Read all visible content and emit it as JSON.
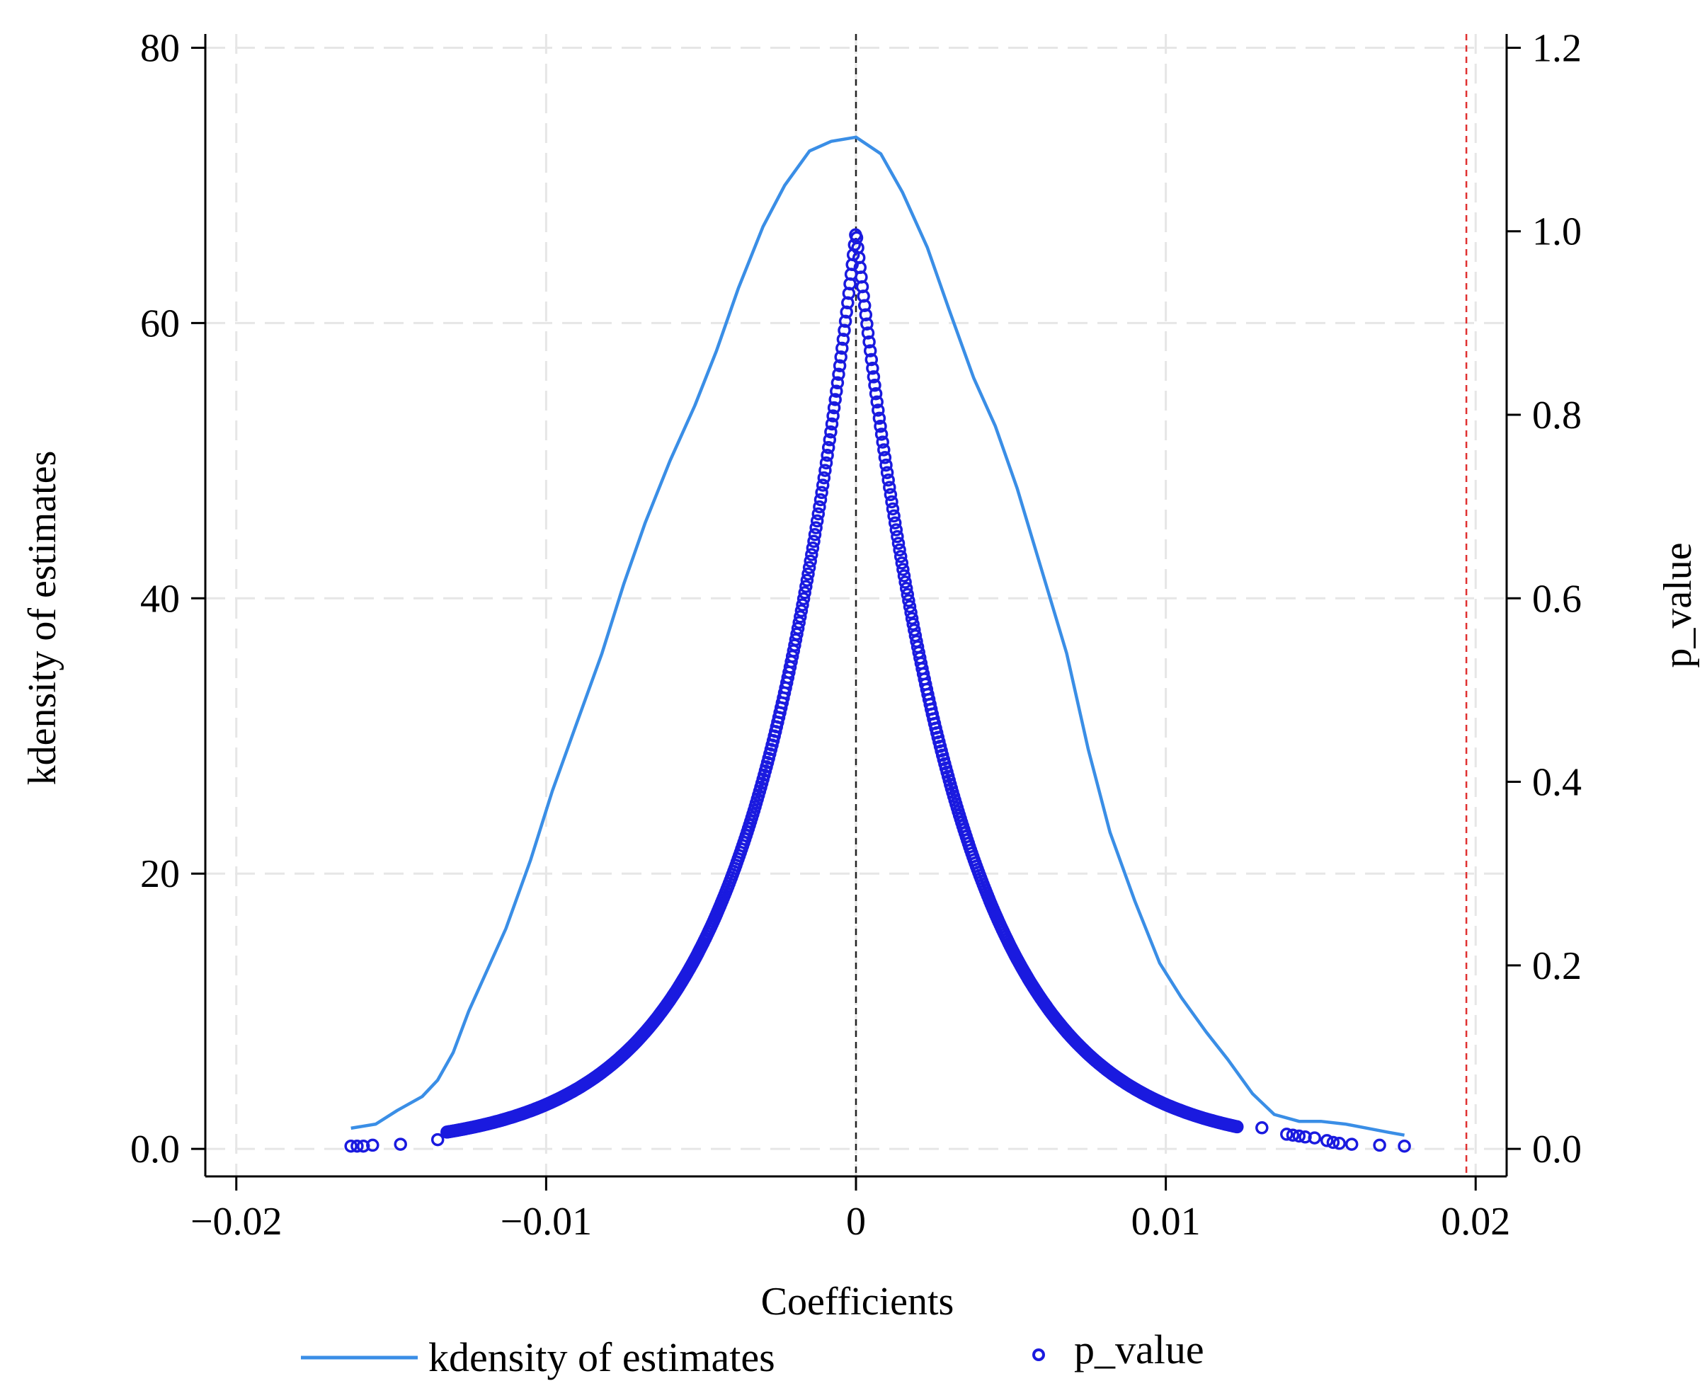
{
  "chart_data": {
    "type": "line+scatter",
    "title": "",
    "xlabel": "Coefficients",
    "ylabel_left": "kdensity of estimates",
    "ylabel_right": "p_value",
    "xlim": [
      -0.021,
      0.021
    ],
    "ylim_left": [
      -2,
      81
    ],
    "ylim_right": [
      -0.03,
      1.215
    ],
    "x_ticks": [
      -0.02,
      -0.01,
      0,
      0.01,
      0.02
    ],
    "x_tick_labels": [
      "−0.02",
      "−0.01",
      "0",
      "0.01",
      "0.02"
    ],
    "y_left_ticks": [
      0,
      20,
      40,
      60,
      80
    ],
    "y_left_tick_labels": [
      "0.0",
      "20",
      "40",
      "60",
      "80"
    ],
    "y_right_ticks": [
      0,
      0.2,
      0.4,
      0.6,
      0.8,
      1.0,
      1.2
    ],
    "y_right_tick_labels": [
      "0.0",
      "0.2",
      "0.4",
      "0.6",
      "0.8",
      "1.0",
      "1.2"
    ],
    "grid": true,
    "reference_lines": [
      {
        "axis": "x",
        "value": 0,
        "color": "#222222",
        "style": "dashed"
      },
      {
        "axis": "x",
        "value": 0.0197,
        "color": "#e03030",
        "style": "dashed"
      }
    ],
    "series": [
      {
        "name": "kdensity of estimates",
        "kind": "line",
        "axis": "left",
        "color": "#3a8ee6",
        "x": [
          -0.0163,
          -0.0155,
          -0.0148,
          -0.014,
          -0.0135,
          -0.013,
          -0.0125,
          -0.012,
          -0.0113,
          -0.0105,
          -0.0098,
          -0.009,
          -0.0082,
          -0.0075,
          -0.0068,
          -0.006,
          -0.0052,
          -0.0045,
          -0.0038,
          -0.003,
          -0.0023,
          -0.0015,
          -0.0008,
          0.0,
          0.0008,
          0.0015,
          0.0023,
          0.003,
          0.0038,
          0.0045,
          0.0052,
          0.006,
          0.0068,
          0.0075,
          0.0082,
          0.009,
          0.0098,
          0.0105,
          0.0113,
          0.012,
          0.0128,
          0.0135,
          0.0143,
          0.015,
          0.0158,
          0.0165,
          0.0172,
          0.0177
        ],
        "values": [
          1.5,
          1.8,
          2.8,
          3.8,
          5.0,
          7.0,
          10.0,
          12.5,
          16.0,
          21.0,
          26.0,
          31.0,
          36.0,
          41.0,
          45.5,
          50.0,
          54.0,
          58.0,
          62.5,
          67.0,
          70.0,
          72.5,
          73.2,
          73.5,
          72.3,
          69.5,
          65.5,
          61.0,
          56.0,
          52.5,
          48.0,
          42.0,
          36.0,
          29.0,
          23.0,
          18.0,
          13.5,
          11.0,
          8.5,
          6.5,
          4.0,
          2.5,
          2.0,
          2.0,
          1.8,
          1.5,
          1.2,
          1.0
        ]
      },
      {
        "name": "p_value",
        "kind": "scatter",
        "axis": "right",
        "color": "#1a1adf",
        "marker": "hollow-circle",
        "outliers_left_x": [
          -0.0163,
          -0.0161,
          -0.0159,
          -0.0156,
          -0.0147,
          -0.0135
        ],
        "outliers_left_y": [
          0.003,
          0.003,
          0.003,
          0.004,
          0.005,
          0.01
        ],
        "outliers_right_x": [
          0.0131,
          0.0139,
          0.0141,
          0.0143,
          0.0145,
          0.0148,
          0.0152,
          0.0154,
          0.0156,
          0.016,
          0.0169,
          0.0177
        ],
        "outliers_right_y": [
          0.023,
          0.016,
          0.015,
          0.014,
          0.013,
          0.012,
          0.009,
          0.007,
          0.006,
          0.005,
          0.004,
          0.003
        ],
        "dense_band_x_range": [
          -0.0132,
          0.0123
        ],
        "dense_band_peak": 1.0,
        "dense_band_decay_left": 0.0033,
        "dense_band_decay_right": 0.0033
      }
    ],
    "legend": {
      "position": "bottom",
      "entries": [
        "kdensity of estimates",
        "p_value"
      ]
    }
  }
}
